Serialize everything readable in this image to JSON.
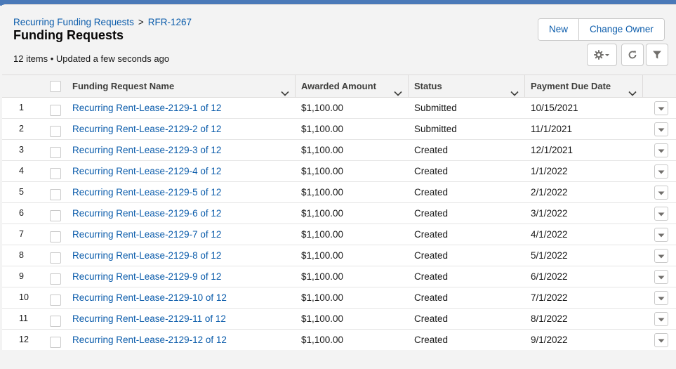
{
  "breadcrumb": {
    "parent": "Recurring Funding Requests",
    "separator": ">",
    "current": "RFR-1267"
  },
  "page_title": "Funding Requests",
  "meta": "12 items • Updated a few seconds ago",
  "actions": {
    "new_label": "New",
    "change_owner_label": "Change Owner"
  },
  "toolbar_icons": [
    "gear-icon",
    "refresh-icon",
    "filter-icon"
  ],
  "columns": {
    "name": "Funding Request Name",
    "amount": "Awarded Amount",
    "status": "Status",
    "due": "Payment Due Date"
  },
  "rows": [
    {
      "num": "1",
      "name": "Recurring Rent-Lease-2129-1 of 12",
      "amount": "$1,100.00",
      "status": "Submitted",
      "due": "10/15/2021"
    },
    {
      "num": "2",
      "name": "Recurring Rent-Lease-2129-2 of 12",
      "amount": "$1,100.00",
      "status": "Submitted",
      "due": "11/1/2021"
    },
    {
      "num": "3",
      "name": "Recurring Rent-Lease-2129-3 of 12",
      "amount": "$1,100.00",
      "status": "Created",
      "due": "12/1/2021"
    },
    {
      "num": "4",
      "name": "Recurring Rent-Lease-2129-4 of 12",
      "amount": "$1,100.00",
      "status": "Created",
      "due": "1/1/2022"
    },
    {
      "num": "5",
      "name": "Recurring Rent-Lease-2129-5 of 12",
      "amount": "$1,100.00",
      "status": "Created",
      "due": "2/1/2022"
    },
    {
      "num": "6",
      "name": "Recurring Rent-Lease-2129-6 of 12",
      "amount": "$1,100.00",
      "status": "Created",
      "due": "3/1/2022"
    },
    {
      "num": "7",
      "name": "Recurring Rent-Lease-2129-7 of 12",
      "amount": "$1,100.00",
      "status": "Created",
      "due": "4/1/2022"
    },
    {
      "num": "8",
      "name": "Recurring Rent-Lease-2129-8 of 12",
      "amount": "$1,100.00",
      "status": "Created",
      "due": "5/1/2022"
    },
    {
      "num": "9",
      "name": "Recurring Rent-Lease-2129-9 of 12",
      "amount": "$1,100.00",
      "status": "Created",
      "due": "6/1/2022"
    },
    {
      "num": "10",
      "name": "Recurring Rent-Lease-2129-10 of 12",
      "amount": "$1,100.00",
      "status": "Created",
      "due": "7/1/2022"
    },
    {
      "num": "11",
      "name": "Recurring Rent-Lease-2129-11 of 12",
      "amount": "$1,100.00",
      "status": "Created",
      "due": "8/1/2022"
    },
    {
      "num": "12",
      "name": "Recurring Rent-Lease-2129-12 of 12",
      "amount": "$1,100.00",
      "status": "Created",
      "due": "9/1/2022"
    }
  ],
  "colors": {
    "link": "#0b5cab",
    "header_bg": "#f3f3f3",
    "border": "#dddbda"
  }
}
